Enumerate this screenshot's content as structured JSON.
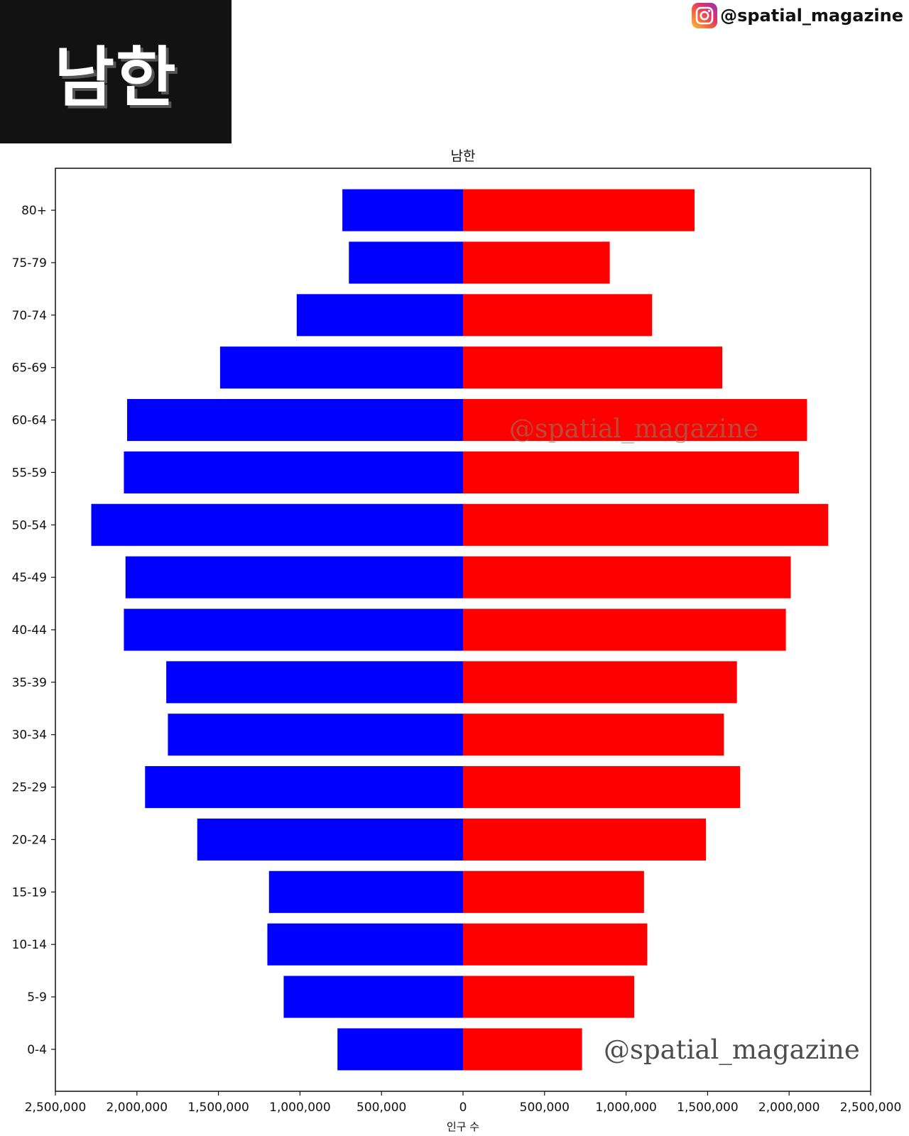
{
  "header": {
    "title": "남한"
  },
  "brand": {
    "handle": "@spatial_magazine",
    "icon": "instagram-icon"
  },
  "watermarks": [
    "@spatial_magazine",
    "@spatial_magazine"
  ],
  "chart_data": {
    "type": "bar",
    "orientation": "horizontal",
    "title": "남한",
    "xlabel": "인구 수",
    "ylabel": "",
    "categories": [
      "0-4",
      "5-9",
      "10-14",
      "15-19",
      "20-24",
      "25-29",
      "30-34",
      "35-39",
      "40-44",
      "45-49",
      "50-54",
      "55-59",
      "60-64",
      "65-69",
      "70-74",
      "75-79",
      "80+"
    ],
    "series": [
      {
        "color": "#0000ff",
        "side": "left",
        "values": [
          770000,
          1100000,
          1200000,
          1190000,
          1630000,
          1950000,
          1810000,
          1820000,
          2080000,
          2070000,
          2280000,
          2080000,
          2060000,
          1490000,
          1020000,
          700000,
          740000
        ]
      },
      {
        "color": "#ff0000",
        "side": "right",
        "values": [
          730000,
          1050000,
          1130000,
          1110000,
          1490000,
          1700000,
          1600000,
          1680000,
          1980000,
          2010000,
          2240000,
          2060000,
          2110000,
          1590000,
          1160000,
          900000,
          1420000
        ]
      }
    ],
    "xlim": [
      -2500000,
      2500000
    ],
    "xticks": [
      -2500000,
      -2000000,
      -1500000,
      -1000000,
      -500000,
      0,
      500000,
      1000000,
      1500000,
      2000000,
      2500000
    ],
    "xtick_labels": [
      "2,500,000",
      "2,000,000",
      "1,500,000",
      "1,000,000",
      "500,000",
      "0",
      "500,000",
      "1,000,000",
      "1,500,000",
      "2,000,000",
      "2,500,000"
    ],
    "grid": false,
    "legend": "none"
  }
}
